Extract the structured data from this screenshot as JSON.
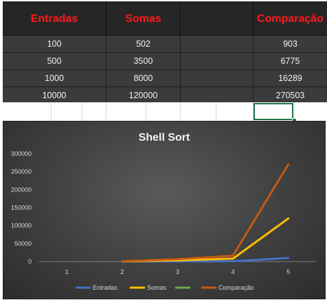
{
  "table": {
    "headers": [
      "Entradas",
      "Somas",
      "",
      "Comparação"
    ],
    "rows": [
      [
        "100",
        "502",
        "",
        "903"
      ],
      [
        "500",
        "3500",
        "",
        "6775"
      ],
      [
        "1000",
        "8000",
        "",
        "16289"
      ],
      [
        "10000",
        "120000",
        "",
        "270503"
      ]
    ]
  },
  "chart_data": {
    "type": "line",
    "title": "Shell Sort",
    "x": [
      1,
      2,
      3,
      4,
      5
    ],
    "x_tick_labels": [
      "1",
      "2",
      "3",
      "4",
      "5"
    ],
    "ylim": [
      0,
      300000
    ],
    "y_tick_labels": [
      "0",
      "50000",
      "100000",
      "150000",
      "200000",
      "250000",
      "300000"
    ],
    "grid": false,
    "legend_position": "bottom",
    "series": [
      {
        "name": "Entradas",
        "color": "#4472c4",
        "values": [
          null,
          100,
          500,
          1000,
          10000
        ]
      },
      {
        "name": "Somas",
        "color": "#ffc000",
        "values": [
          null,
          502,
          3500,
          8000,
          120000
        ]
      },
      {
        "name": "",
        "color": "#70ad47",
        "values": [
          null,
          null,
          null,
          null,
          null
        ]
      },
      {
        "name": "Comparação",
        "color": "#c55a11",
        "values": [
          null,
          903,
          6775,
          16289,
          270503
        ]
      }
    ]
  }
}
